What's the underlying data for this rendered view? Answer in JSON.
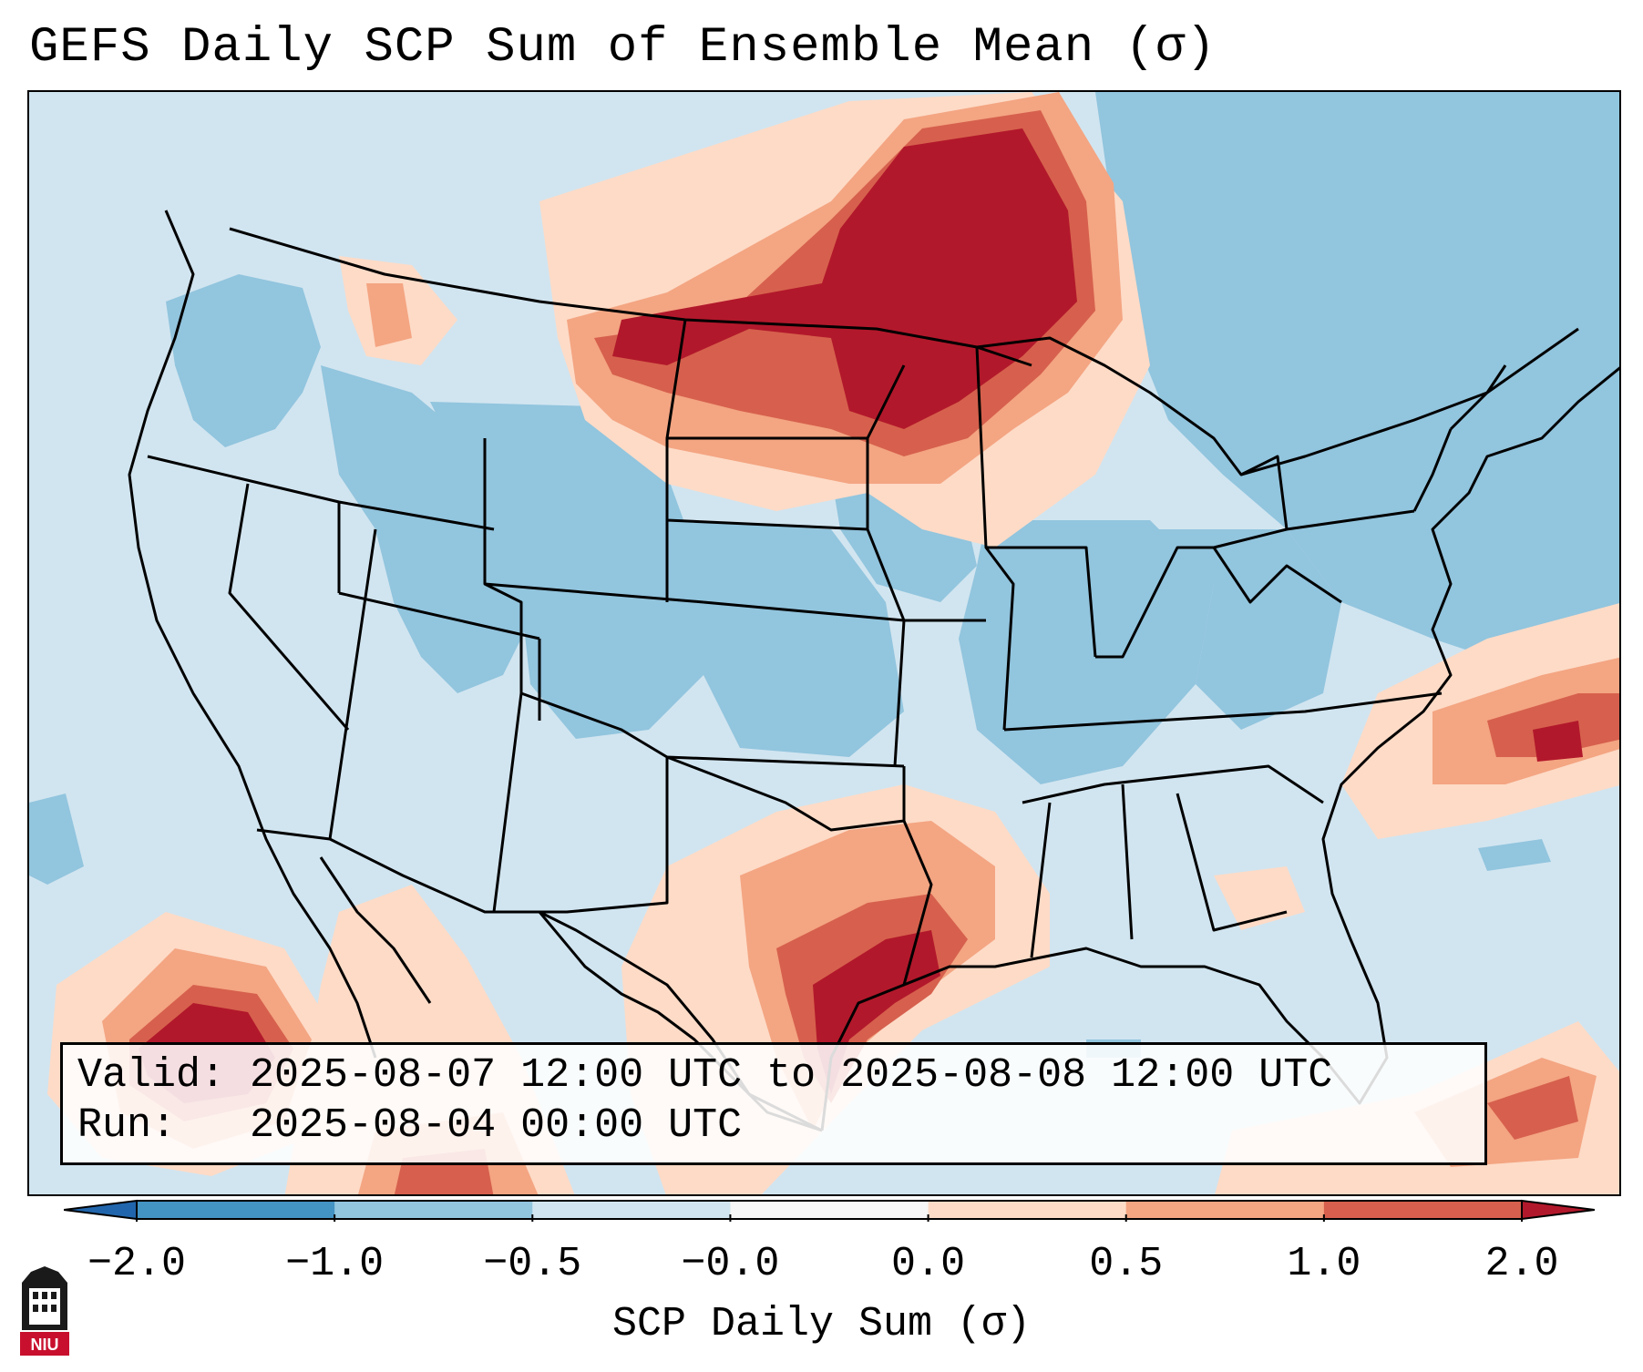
{
  "title": "GEFS Daily SCP Sum of Ensemble Mean (σ)",
  "info_box": {
    "valid_line": "Valid: 2025-08-07 12:00 UTC to 2025-08-08 12:00 UTC",
    "run_line": "Run:   2025-08-04 00:00 UTC"
  },
  "colorbar": {
    "label": "SCP Daily Sum (σ)",
    "ticks": [
      "−2.0",
      "−1.0",
      "−0.5",
      "−0.0",
      "0.0",
      "0.5",
      "1.0",
      "2.0"
    ],
    "colors": [
      "#4393c3",
      "#92c5de",
      "#d1e5f0",
      "#f7f7f7",
      "#fddbc7",
      "#f4a582",
      "#d6604d"
    ],
    "extend_low_color": "#2166ac",
    "extend_high_color": "#b2182b"
  },
  "map": {
    "background_color": "#d1e5f0",
    "color_levels": {
      "strong_negative": "#92c5de",
      "near_zero": "#d1e5f0",
      "weak_positive": "#fddbc7",
      "moderate_positive": "#f4a582",
      "strong_positive": "#d6604d",
      "very_strong_positive": "#b2182b"
    }
  },
  "logo": {
    "text": "NIU",
    "color": "#c8102e"
  }
}
